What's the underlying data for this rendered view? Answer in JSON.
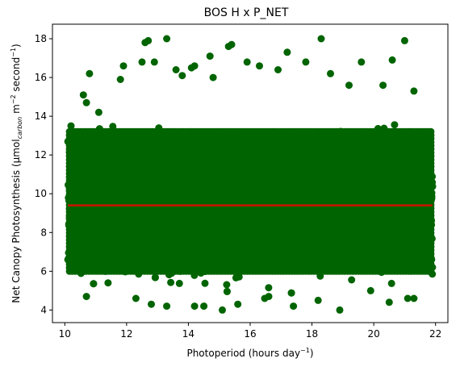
{
  "chart_data": {
    "type": "scatter",
    "title": "BOS H x P_NET",
    "xlabel": "Photoperiod (hours day",
    "xlabel_sup": "−1",
    "xlabel_end": ")",
    "ylabel": "Net Canopy Photosynthesis (µmol",
    "ylabel_sub": "carbon",
    "ylabel_mid": " m",
    "ylabel_sup1": "−2",
    "ylabel_mid2": " second",
    "ylabel_sup2": "−1",
    "ylabel_end": ")",
    "xlim": [
      9.6,
      22.4
    ],
    "ylim": [
      3.35,
      18.75
    ],
    "xticks": [
      10,
      12,
      14,
      16,
      18,
      20,
      22
    ],
    "yticks": [
      4,
      6,
      8,
      10,
      12,
      14,
      16,
      18
    ],
    "grid": false,
    "series": [
      {
        "color": "#006400",
        "marker": "circle",
        "x_range": [
          10.1,
          21.9
        ],
        "y_mean": 9.4,
        "y_core": [
          6.0,
          13.2
        ],
        "outliers": [
          [
            10.1,
            12.7
          ],
          [
            10.2,
            13.5
          ],
          [
            10.1,
            6.6
          ],
          [
            10.2,
            7.4
          ],
          [
            10.6,
            15.1
          ],
          [
            10.7,
            14.7
          ],
          [
            10.8,
            16.2
          ],
          [
            10.7,
            4.7
          ],
          [
            11.1,
            14.2
          ],
          [
            11.4,
            5.4
          ],
          [
            11.8,
            15.9
          ],
          [
            11.9,
            16.6
          ],
          [
            12.3,
            4.6
          ],
          [
            12.5,
            16.8
          ],
          [
            12.6,
            17.8
          ],
          [
            12.7,
            17.9
          ],
          [
            12.9,
            16.8
          ],
          [
            12.8,
            4.3
          ],
          [
            13.3,
            18.0
          ],
          [
            13.3,
            4.2
          ],
          [
            13.6,
            16.4
          ],
          [
            13.8,
            16.1
          ],
          [
            14.1,
            16.5
          ],
          [
            14.2,
            16.6
          ],
          [
            14.2,
            4.2
          ],
          [
            14.5,
            4.2
          ],
          [
            14.7,
            17.1
          ],
          [
            14.8,
            16.0
          ],
          [
            15.1,
            4.0
          ],
          [
            15.3,
            17.6
          ],
          [
            15.4,
            17.7
          ],
          [
            15.6,
            4.3
          ],
          [
            15.9,
            16.8
          ],
          [
            16.3,
            16.6
          ],
          [
            16.6,
            4.7
          ],
          [
            16.9,
            16.4
          ],
          [
            17.2,
            17.3
          ],
          [
            17.4,
            4.2
          ],
          [
            17.8,
            16.8
          ],
          [
            18.3,
            18.0
          ],
          [
            18.2,
            4.5
          ],
          [
            18.6,
            16.2
          ],
          [
            18.9,
            4.0
          ],
          [
            19.2,
            15.6
          ],
          [
            19.6,
            16.8
          ],
          [
            19.9,
            5.0
          ],
          [
            20.3,
            15.6
          ],
          [
            20.5,
            4.4
          ],
          [
            20.6,
            16.9
          ],
          [
            21.0,
            17.9
          ],
          [
            21.1,
            4.6
          ],
          [
            21.3,
            4.6
          ],
          [
            21.3,
            15.3
          ],
          [
            21.9,
            6.2
          ]
        ]
      },
      {
        "kind": "trend-line",
        "color": "#cc1100",
        "x": [
          10.1,
          21.9
        ],
        "y": [
          9.4,
          9.4
        ]
      }
    ]
  }
}
